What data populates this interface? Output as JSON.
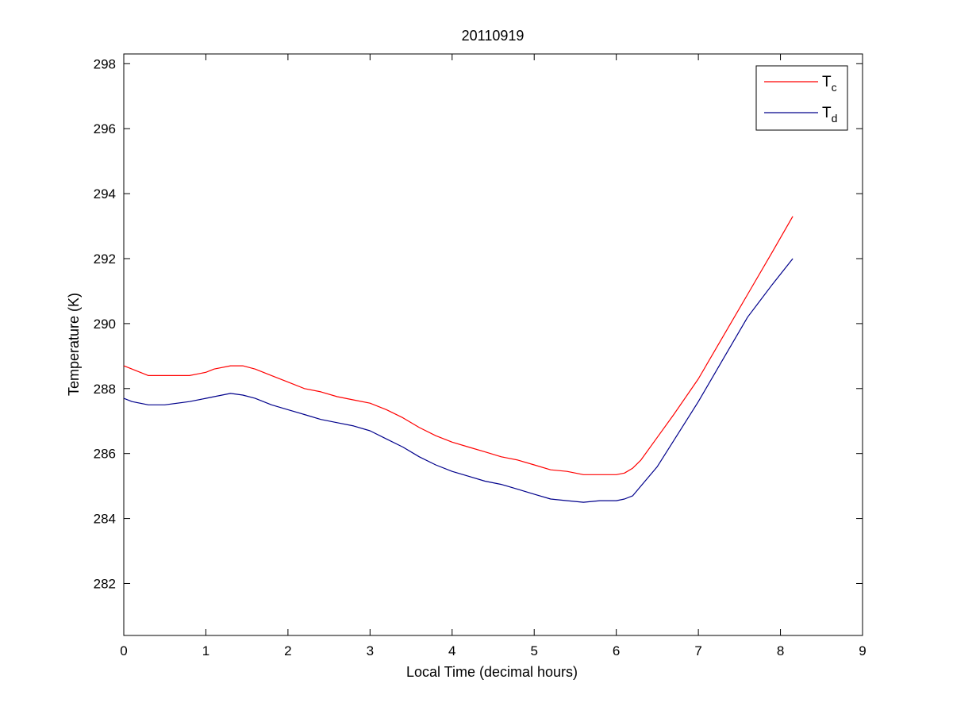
{
  "chart_data": {
    "type": "line",
    "title": "20110919",
    "xlabel": "Local Time (decimal hours)",
    "ylabel": "Temperature (K)",
    "xlim": [
      0,
      9
    ],
    "ylim": [
      280.4,
      298.3
    ],
    "xticks": [
      0,
      1,
      2,
      3,
      4,
      5,
      6,
      7,
      8,
      9
    ],
    "yticks": [
      282,
      284,
      286,
      288,
      290,
      292,
      294,
      296,
      298
    ],
    "grid": false,
    "legend_position": "top-right",
    "series": [
      {
        "name": "T",
        "name_subscript": "c",
        "color": "#ff0000",
        "x": [
          0,
          0.2,
          0.3,
          0.5,
          0.8,
          1.0,
          1.1,
          1.3,
          1.45,
          1.6,
          1.8,
          2.0,
          2.2,
          2.4,
          2.6,
          2.8,
          3.0,
          3.2,
          3.4,
          3.6,
          3.8,
          4.0,
          4.2,
          4.4,
          4.6,
          4.8,
          5.0,
          5.2,
          5.4,
          5.6,
          5.8,
          6.0,
          6.1,
          6.2,
          6.3,
          6.5,
          6.7,
          7.0,
          7.3,
          7.6,
          7.9,
          8.15
        ],
        "y": [
          288.7,
          288.5,
          288.4,
          288.4,
          288.4,
          288.5,
          288.6,
          288.7,
          288.7,
          288.6,
          288.4,
          288.2,
          288.0,
          287.9,
          287.75,
          287.65,
          287.55,
          287.35,
          287.1,
          286.8,
          286.55,
          286.35,
          286.2,
          286.05,
          285.9,
          285.8,
          285.65,
          285.5,
          285.45,
          285.35,
          285.35,
          285.35,
          285.4,
          285.55,
          285.8,
          286.5,
          287.2,
          288.3,
          289.6,
          290.9,
          292.2,
          293.3
        ]
      },
      {
        "name": "T",
        "name_subscript": "d",
        "color": "#00008b",
        "x": [
          0,
          0.1,
          0.3,
          0.5,
          0.8,
          1.0,
          1.1,
          1.3,
          1.45,
          1.6,
          1.8,
          2.0,
          2.2,
          2.4,
          2.6,
          2.8,
          3.0,
          3.2,
          3.4,
          3.6,
          3.8,
          4.0,
          4.2,
          4.4,
          4.6,
          4.8,
          5.0,
          5.2,
          5.4,
          5.6,
          5.8,
          6.0,
          6.1,
          6.2,
          6.3,
          6.5,
          6.7,
          7.0,
          7.3,
          7.6,
          7.9,
          8.15
        ],
        "y": [
          287.7,
          287.6,
          287.5,
          287.5,
          287.6,
          287.7,
          287.75,
          287.85,
          287.8,
          287.7,
          287.5,
          287.35,
          287.2,
          287.05,
          286.95,
          286.85,
          286.7,
          286.45,
          286.2,
          285.9,
          285.65,
          285.45,
          285.3,
          285.15,
          285.05,
          284.9,
          284.75,
          284.6,
          284.55,
          284.5,
          284.55,
          284.55,
          284.6,
          284.7,
          285.0,
          285.6,
          286.4,
          287.6,
          288.9,
          290.2,
          291.2,
          292.0
        ]
      }
    ]
  }
}
